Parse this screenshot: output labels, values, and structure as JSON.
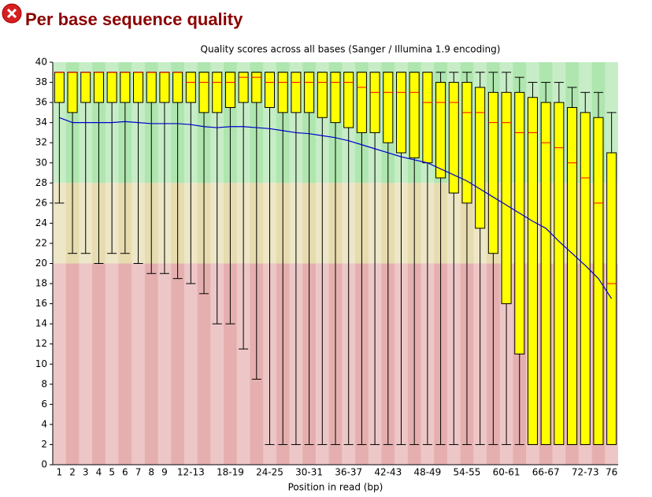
{
  "header": {
    "title": "Per base sequence quality"
  },
  "chart_data": {
    "type": "box",
    "title": "Quality scores across all bases (Sanger / Illumina 1.9 encoding)",
    "x_label": "Position in read (bp)",
    "categories": [
      "1",
      "2",
      "3",
      "4",
      "5",
      "6",
      "7",
      "8",
      "9",
      null,
      "12-13",
      null,
      null,
      "18-19",
      null,
      null,
      "24-25",
      null,
      null,
      "30-31",
      null,
      null,
      "36-37",
      null,
      null,
      "42-43",
      null,
      null,
      "48-49",
      null,
      null,
      "54-55",
      null,
      null,
      "60-61",
      null,
      null,
      "66-67",
      null,
      null,
      "72-73",
      null,
      "76"
    ],
    "whisker_low": [
      26,
      21,
      21,
      20,
      21,
      21,
      20,
      19,
      19,
      18.5,
      18,
      17,
      14,
      14,
      11.5,
      8.5,
      2,
      2,
      2,
      2,
      2,
      2,
      2,
      2,
      2,
      2,
      2,
      2,
      2,
      2,
      2,
      2,
      2,
      2,
      2,
      2,
      2,
      2,
      2,
      2,
      2,
      2,
      2
    ],
    "q1": [
      36,
      35,
      36,
      36,
      36,
      36,
      36,
      36,
      36,
      36,
      36,
      35,
      35,
      35.5,
      36,
      36,
      35.5,
      35,
      35,
      35,
      34.5,
      34,
      33.5,
      33,
      33,
      32,
      31,
      30.5,
      30,
      28.5,
      27,
      26,
      23.5,
      21,
      16,
      11,
      2,
      2,
      2,
      2,
      2,
      2,
      2
    ],
    "median": [
      39,
      39,
      39,
      39,
      39,
      39,
      39,
      39,
      39,
      39,
      38,
      38,
      38,
      38,
      38.5,
      38.5,
      38,
      38,
      38,
      38,
      38,
      38,
      38,
      37.5,
      37,
      37,
      37,
      37,
      36,
      36,
      36,
      35,
      35,
      34,
      34,
      33,
      33,
      32,
      31.5,
      30,
      28.5,
      26,
      18
    ],
    "q3": [
      39,
      39,
      39,
      39,
      39,
      39,
      39,
      39,
      39,
      39,
      39,
      39,
      39,
      39,
      39,
      39,
      39,
      39,
      39,
      39,
      39,
      39,
      39,
      39,
      39,
      39,
      39,
      39,
      39,
      38,
      38,
      38,
      37.5,
      37,
      37,
      37,
      36.5,
      36,
      36,
      35.5,
      35,
      34.5,
      31
    ],
    "whisker_high": [
      39,
      39,
      39,
      39,
      39,
      39,
      39,
      39,
      39,
      39,
      39,
      39,
      39,
      39,
      39,
      39,
      39,
      39,
      39,
      39,
      39,
      39,
      39,
      39,
      39,
      39,
      39,
      39,
      39,
      39,
      39,
      39,
      39,
      39,
      39,
      38.5,
      38,
      38,
      38,
      37.5,
      37,
      37,
      35
    ],
    "mean": [
      34.5,
      34,
      34,
      34,
      34,
      34.1,
      34,
      33.9,
      33.9,
      33.9,
      33.8,
      33.6,
      33.5,
      33.6,
      33.6,
      33.5,
      33.4,
      33.2,
      33,
      32.9,
      32.7,
      32.5,
      32.2,
      31.8,
      31.4,
      31,
      30.6,
      30.3,
      30,
      29.4,
      28.8,
      28.2,
      27.4,
      26.6,
      25.8,
      25,
      24.2,
      23.5,
      22.2,
      21,
      19.8,
      18.5,
      16.5
    ],
    "box_color": "#ffff00",
    "median_color": "#ff0000",
    "mean_color": "#0000cc",
    "zones": [
      {
        "from": 28,
        "to": 40,
        "color": "#afe6af"
      },
      {
        "from": 20,
        "to": 28,
        "color": "#e6dcaf"
      },
      {
        "from": 0,
        "to": 20,
        "color": "#e6afaf"
      }
    ],
    "ylim": [
      0,
      40
    ],
    "yticks": [
      0,
      2,
      4,
      6,
      8,
      10,
      12,
      14,
      16,
      18,
      20,
      22,
      24,
      26,
      28,
      30,
      32,
      34,
      36,
      38,
      40
    ]
  }
}
